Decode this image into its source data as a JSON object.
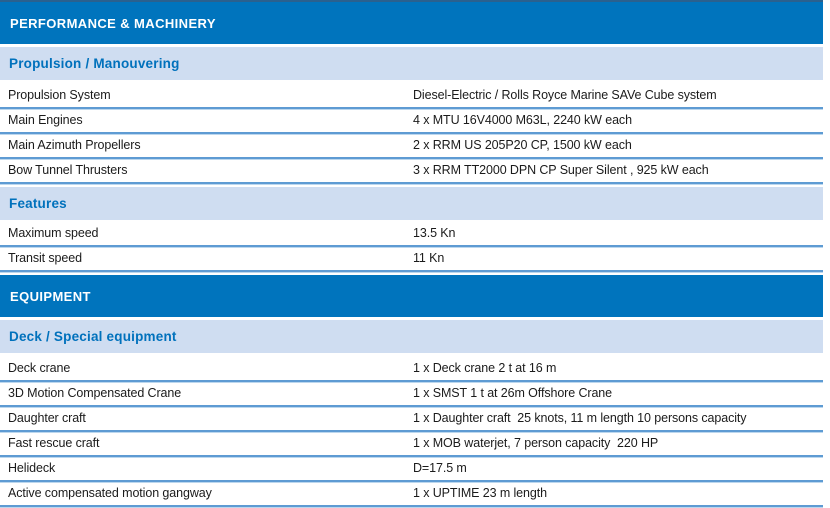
{
  "colors": {
    "section_header_bg": "#0074BD",
    "section_header_top_edge": "#2A618F",
    "section_header_text": "#FFFFFF",
    "group_band_bg": "#CFDDF1",
    "group_subtitle_text": "#0071BC",
    "row_separator": "#5E9BD3",
    "row_text": "#1B1B1B",
    "page_bg": "#FFFFFF"
  },
  "table": {
    "sections": [
      {
        "title": "PERFORMANCE & MACHINERY",
        "groups": [
          {
            "subtitle": "Propulsion / Manouvering",
            "rows": [
              {
                "label": "Propulsion System",
                "value": "Diesel-Electric / Rolls Royce Marine SAVe Cube system"
              },
              {
                "label": "Main Engines",
                "value": "4 x MTU 16V4000 M63L, 2240 kW each"
              },
              {
                "label": "Main Azimuth Propellers",
                "value": "2 x RRM US 205P20 CP, 1500 kW each"
              },
              {
                "label": "Bow Tunnel Thrusters",
                "value": "3 x RRM TT2000 DPN CP Super Silent , 925 kW each"
              }
            ]
          },
          {
            "subtitle": "Features",
            "rows": [
              {
                "label": "Maximum speed",
                "value": "13.5 Kn"
              },
              {
                "label": "Transit speed",
                "value": "11 Kn"
              }
            ]
          }
        ]
      },
      {
        "title": "EQUIPMENT",
        "groups": [
          {
            "subtitle": "Deck / Special equipment",
            "rows": [
              {
                "label": "Deck crane",
                "value": "1 x Deck crane 2 t at 16 m"
              },
              {
                "label": "3D Motion Compensated Crane",
                "value": "1 x SMST 1 t at 26m Offshore Crane"
              },
              {
                "label": "Daughter craft",
                "value": "1 x Daughter craft  25 knots, 11 m length 10 persons capacity"
              },
              {
                "label": "Fast rescue craft",
                "value": "1 x MOB waterjet, 7 person capacity  220 HP"
              },
              {
                "label": "Helideck",
                "value": "D=17.5 m"
              },
              {
                "label": "Active compensated motion gangway",
                "value": "1 x UPTIME 23 m length"
              }
            ]
          }
        ]
      }
    ]
  }
}
